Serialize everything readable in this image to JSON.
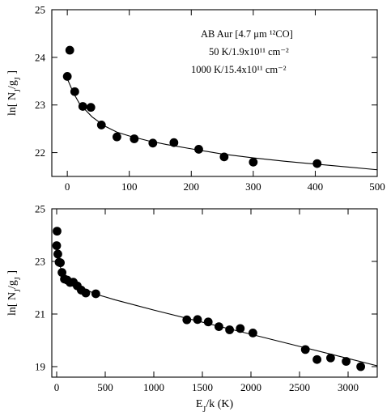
{
  "chart_data": [
    {
      "type": "scatter",
      "title": "",
      "xlabel": "",
      "ylabel": "ln[ N_J/g_J ]",
      "xlim": [
        -25,
        500
      ],
      "ylim": [
        21.5,
        25
      ],
      "xticks": [
        0,
        100,
        200,
        300,
        400,
        500
      ],
      "xtick_labels": [
        "0",
        "100",
        "200",
        "300",
        "400",
        "500"
      ],
      "yticks": [
        22,
        23,
        24,
        25
      ],
      "ytick_labels": [
        "22",
        "23",
        "24",
        "25"
      ],
      "grid": false,
      "legend": null,
      "annotations": [
        "AB Aur [4.7 μm ¹²CO]",
        "50 K/1.9x10¹¹ cm⁻²",
        "1000 K/15.4x10¹¹ cm⁻²"
      ],
      "series": [
        {
          "kind": "points",
          "x": [
            0,
            4,
            12,
            25,
            38,
            55,
            80,
            108,
            138,
            172,
            212,
            253,
            300,
            403
          ],
          "y": [
            23.6,
            24.15,
            23.28,
            22.97,
            22.95,
            22.58,
            22.33,
            22.29,
            22.2,
            22.21,
            22.07,
            21.91,
            21.8,
            21.77
          ]
        },
        {
          "kind": "fit-line",
          "x": [
            0,
            10,
            20,
            40,
            60,
            80,
            100,
            130,
            160,
            200,
            250,
            300,
            350,
            400,
            450,
            500
          ],
          "y": [
            23.55,
            23.25,
            23.02,
            22.75,
            22.56,
            22.43,
            22.35,
            22.25,
            22.17,
            22.08,
            21.97,
            21.89,
            21.82,
            21.76,
            21.7,
            21.64
          ]
        }
      ]
    },
    {
      "type": "scatter",
      "title": "",
      "xlabel": "E_J/k (K)",
      "ylabel": "ln[ N_J/g_J ]",
      "xlim": [
        -50,
        3300
      ],
      "ylim": [
        18.6,
        25
      ],
      "xticks": [
        0,
        500,
        1000,
        1500,
        2000,
        2500,
        3000
      ],
      "xtick_labels": [
        "0",
        "500",
        "1000",
        "1500",
        "2000",
        "2500",
        "3000"
      ],
      "yticks": [
        19,
        21,
        23,
        25
      ],
      "ytick_labels": [
        "19",
        "21",
        "23",
        "25"
      ],
      "grid": false,
      "legend": null,
      "series": [
        {
          "kind": "points",
          "x": [
            0,
            4,
            12,
            25,
            38,
            55,
            80,
            108,
            138,
            172,
            212,
            253,
            300,
            403,
            1340,
            1450,
            1560,
            1670,
            1780,
            1890,
            2020,
            2560,
            2680,
            2820,
            2980,
            3130
          ],
          "y": [
            23.6,
            24.15,
            23.28,
            22.97,
            22.95,
            22.58,
            22.33,
            22.29,
            22.2,
            22.21,
            22.07,
            21.91,
            21.8,
            21.77,
            20.78,
            20.79,
            20.7,
            20.52,
            20.4,
            20.45,
            20.28,
            19.65,
            19.27,
            19.33,
            19.2,
            19.0
          ]
        },
        {
          "kind": "fit-line",
          "x": [
            0,
            10,
            25,
            50,
            80,
            120,
            200,
            300,
            400,
            600,
            1000,
            1500,
            2000,
            2500,
            3000,
            3300
          ],
          "y": [
            23.55,
            23.24,
            22.92,
            22.66,
            22.47,
            22.34,
            22.14,
            21.93,
            21.76,
            21.54,
            21.15,
            20.69,
            20.23,
            19.77,
            19.31,
            19.03
          ]
        }
      ]
    }
  ]
}
